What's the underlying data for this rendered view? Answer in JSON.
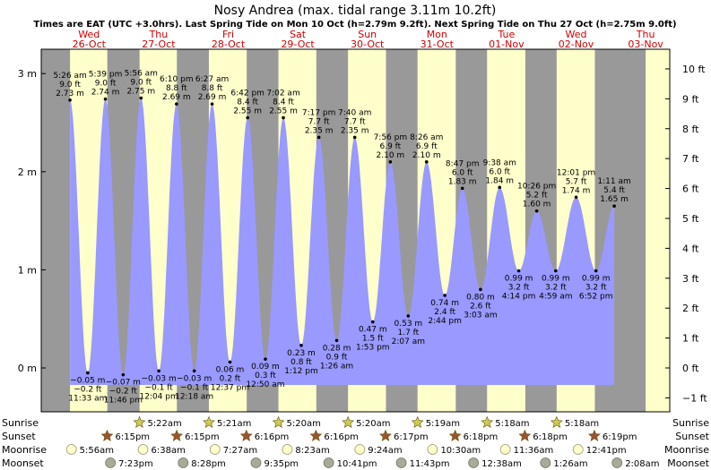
{
  "title": "Nosy Andrea (max. tidal range 3.11m 10.2ft)",
  "subtitle": "Times are EAT (UTC +3.0hrs). Last Spring Tide on Mon 10 Oct (h=2.79m 9.2ft). Next Spring Tide on Thu 27 Oct (h=2.75m 9.0ft)",
  "colors": {
    "day_bg": "#ffffcc",
    "night_bg": "#999999",
    "water": "#9999ff",
    "date_text": "#cc0000",
    "sun_icon": "#cccc55",
    "sunset_icon": "#995533",
    "moon_icon": "#ffffcc",
    "moonset_icon": "#aaaa99"
  },
  "chart_data": {
    "type": "area",
    "x_unit": "days (day 0 = Wed 26-Oct 00:00 EAT)",
    "ylim_m": [
      -0.3,
      3.1
    ],
    "left_axis_ticks": [
      "3 m",
      "2 m",
      "1 m",
      "0 m"
    ],
    "right_axis_ticks": [
      "10 ft",
      "9 ft",
      "8 ft",
      "7 ft",
      "6 ft",
      "5 ft",
      "4 ft",
      "3 ft",
      "2 ft",
      "1 ft",
      "0 ft",
      "−1 ft"
    ],
    "days": [
      {
        "dow": "Wed",
        "date": "26-Oct"
      },
      {
        "dow": "Thu",
        "date": "27-Oct"
      },
      {
        "dow": "Fri",
        "date": "28-Oct"
      },
      {
        "dow": "Sat",
        "date": "29-Oct"
      },
      {
        "dow": "Sun",
        "date": "30-Oct"
      },
      {
        "dow": "Mon",
        "date": "31-Oct"
      },
      {
        "dow": "Tue",
        "date": "01-Nov"
      },
      {
        "dow": "Wed",
        "date": "02-Nov"
      },
      {
        "dow": "Thu",
        "date": "03-Nov"
      }
    ],
    "tides": [
      {
        "time": "5:26 am",
        "ft": "9.0 ft",
        "m": "2.73 m",
        "h": 2.73,
        "t": 0.2264,
        "type": "high"
      },
      {
        "time": "11:33 am",
        "ft": "−0.2 ft",
        "m": "−0.05 m",
        "h": -0.05,
        "t": 0.4813,
        "type": "low"
      },
      {
        "time": "5:39 pm",
        "ft": "9.0 ft",
        "m": "2.74 m",
        "h": 2.74,
        "t": 0.7354,
        "type": "high"
      },
      {
        "time": "11:46 pm",
        "ft": "−0.2 ft",
        "m": "−0.07 m",
        "h": -0.07,
        "t": 0.9903,
        "type": "low"
      },
      {
        "time": "5:56 am",
        "ft": "9.0 ft",
        "m": "2.75 m",
        "h": 2.75,
        "t": 1.2472,
        "type": "high"
      },
      {
        "time": "12:04 pm",
        "ft": "−0.1 ft",
        "m": "−0.03 m",
        "h": -0.03,
        "t": 1.5028,
        "type": "low"
      },
      {
        "time": "6:10 pm",
        "ft": "8.8 ft",
        "m": "2.69 m",
        "h": 2.69,
        "t": 1.7569,
        "type": "high"
      },
      {
        "time": "12:18 am",
        "ft": "−0.1 ft",
        "m": "−0.03 m",
        "h": -0.03,
        "t": 2.0125,
        "type": "low"
      },
      {
        "time": "6:27 am",
        "ft": "8.8 ft",
        "m": "2.69 m",
        "h": 2.69,
        "t": 2.2688,
        "type": "high"
      },
      {
        "time": "12:37 pm",
        "ft": "0.2 ft",
        "m": "0.06 m",
        "h": 0.06,
        "t": 2.5257,
        "type": "low"
      },
      {
        "time": "6:42 pm",
        "ft": "8.4 ft",
        "m": "2.55 m",
        "h": 2.55,
        "t": 2.7792,
        "type": "high"
      },
      {
        "time": "12:50 am",
        "ft": "0.3 ft",
        "m": "0.09 m",
        "h": 0.09,
        "t": 3.0347,
        "type": "low"
      },
      {
        "time": "7:02 am",
        "ft": "8.4 ft",
        "m": "2.55 m",
        "h": 2.55,
        "t": 3.2931,
        "type": "high"
      },
      {
        "time": "1:12 pm",
        "ft": "0.8 ft",
        "m": "0.23 m",
        "h": 0.23,
        "t": 3.55,
        "type": "low"
      },
      {
        "time": "7:17 pm",
        "ft": "7.7 ft",
        "m": "2.35 m",
        "h": 2.35,
        "t": 3.8035,
        "type": "high"
      },
      {
        "time": "1:26 am",
        "ft": "0.9 ft",
        "m": "0.28 m",
        "h": 0.28,
        "t": 4.0597,
        "type": "low"
      },
      {
        "time": "7:40 am",
        "ft": "7.7 ft",
        "m": "2.35 m",
        "h": 2.35,
        "t": 4.3194,
        "type": "high"
      },
      {
        "time": "1:53 pm",
        "ft": "1.5 ft",
        "m": "0.47 m",
        "h": 0.47,
        "t": 4.5785,
        "type": "low"
      },
      {
        "time": "7:56 pm",
        "ft": "6.9 ft",
        "m": "2.10 m",
        "h": 2.1,
        "t": 4.8306,
        "type": "high"
      },
      {
        "time": "2:07 am",
        "ft": "1.7 ft",
        "m": "0.53 m",
        "h": 0.53,
        "t": 5.0882,
        "type": "low"
      },
      {
        "time": "8:26 am",
        "ft": "6.9 ft",
        "m": "2.10 m",
        "h": 2.1,
        "t": 5.3514,
        "type": "high"
      },
      {
        "time": "2:44 pm",
        "ft": "2.4 ft",
        "m": "0.74 m",
        "h": 0.74,
        "t": 5.6139,
        "type": "low"
      },
      {
        "time": "8:47 pm",
        "ft": "6.0 ft",
        "m": "1.83 m",
        "h": 1.83,
        "t": 5.866,
        "type": "high"
      },
      {
        "time": "3:03 am",
        "ft": "2.6 ft",
        "m": "0.80 m",
        "h": 0.8,
        "t": 6.1271,
        "type": "low"
      },
      {
        "time": "9:38 am",
        "ft": "6.0 ft",
        "m": "1.84 m",
        "h": 1.84,
        "t": 6.4014,
        "type": "high"
      },
      {
        "time": "4:14 pm",
        "ft": "3.2 ft",
        "m": "0.99 m",
        "h": 0.99,
        "t": 6.6764,
        "type": "low"
      },
      {
        "time": "10:26 pm",
        "ft": "5.2 ft",
        "m": "1.60 m",
        "h": 1.6,
        "t": 6.9347,
        "type": "high"
      },
      {
        "time": "4:59 am",
        "ft": "3.2 ft",
        "m": "0.99 m",
        "h": 0.99,
        "t": 7.2076,
        "type": "low"
      },
      {
        "time": "12:01 pm",
        "ft": "5.7 ft",
        "m": "1.74 m",
        "h": 1.74,
        "t": 7.5007,
        "type": "high"
      },
      {
        "time": "6:52 pm",
        "ft": "3.2 ft",
        "m": "0.99 m",
        "h": 0.99,
        "t": 7.7861,
        "type": "low"
      },
      {
        "time": "1:11 am",
        "ft": "5.4 ft",
        "m": "1.65 m",
        "h": 1.65,
        "t": 8.049,
        "type": "high"
      }
    ],
    "night_spans_days": [
      [
        -0.5,
        0.2264
      ],
      [
        0.7625,
        1.2264
      ],
      [
        1.7625,
        2.2222
      ],
      [
        2.7667,
        3.2222
      ],
      [
        3.7667,
        4.2222
      ],
      [
        4.7681,
        5.2215
      ],
      [
        5.7708,
        6.2208
      ],
      [
        6.7708,
        7.2208
      ],
      [
        7.7701,
        8.5
      ]
    ],
    "sun_moon": {
      "row_labels": [
        "Sunrise",
        "Sunset",
        "Moonrise",
        "Moonset"
      ],
      "sunrise": [
        {
          "label": "5:22am",
          "t": 1.2236
        },
        {
          "label": "5:21am",
          "t": 2.2229
        },
        {
          "label": "5:20am",
          "t": 3.2222
        },
        {
          "label": "5:20am",
          "t": 4.2222
        },
        {
          "label": "5:19am",
          "t": 5.2215
        },
        {
          "label": "5:18am",
          "t": 6.2208
        },
        {
          "label": "5:18am",
          "t": 7.2208
        }
      ],
      "sunset": [
        {
          "label": "6:15pm",
          "t": 0.7604
        },
        {
          "label": "6:15pm",
          "t": 1.7604
        },
        {
          "label": "6:16pm",
          "t": 2.7611
        },
        {
          "label": "6:16pm",
          "t": 3.7611
        },
        {
          "label": "6:17pm",
          "t": 4.7618
        },
        {
          "label": "6:18pm",
          "t": 5.7625
        },
        {
          "label": "6:18pm",
          "t": 6.7625
        },
        {
          "label": "6:19pm",
          "t": 7.7632
        }
      ],
      "moonrise": [
        {
          "label": "5:56am",
          "t": 0.2472
        },
        {
          "label": "6:38am",
          "t": 1.2764
        },
        {
          "label": "7:27am",
          "t": 2.3104
        },
        {
          "label": "8:23am",
          "t": 3.349
        },
        {
          "label": "9:24am",
          "t": 4.3917
        },
        {
          "label": "10:30am",
          "t": 5.4375
        },
        {
          "label": "11:36am",
          "t": 6.4833
        },
        {
          "label": "12:41pm",
          "t": 7.5285
        }
      ],
      "moonset": [
        {
          "label": "7:23pm",
          "t": 0.8076
        },
        {
          "label": "8:28pm",
          "t": 1.8528
        },
        {
          "label": "9:35pm",
          "t": 2.8993
        },
        {
          "label": "10:41pm",
          "t": 3.9451
        },
        {
          "label": "11:43pm",
          "t": 4.9882
        },
        {
          "label": "12:38am",
          "t": 6.0264
        },
        {
          "label": "1:26am",
          "t": 7.0597
        },
        {
          "label": "2:08am",
          "t": 8.0889
        }
      ]
    }
  }
}
